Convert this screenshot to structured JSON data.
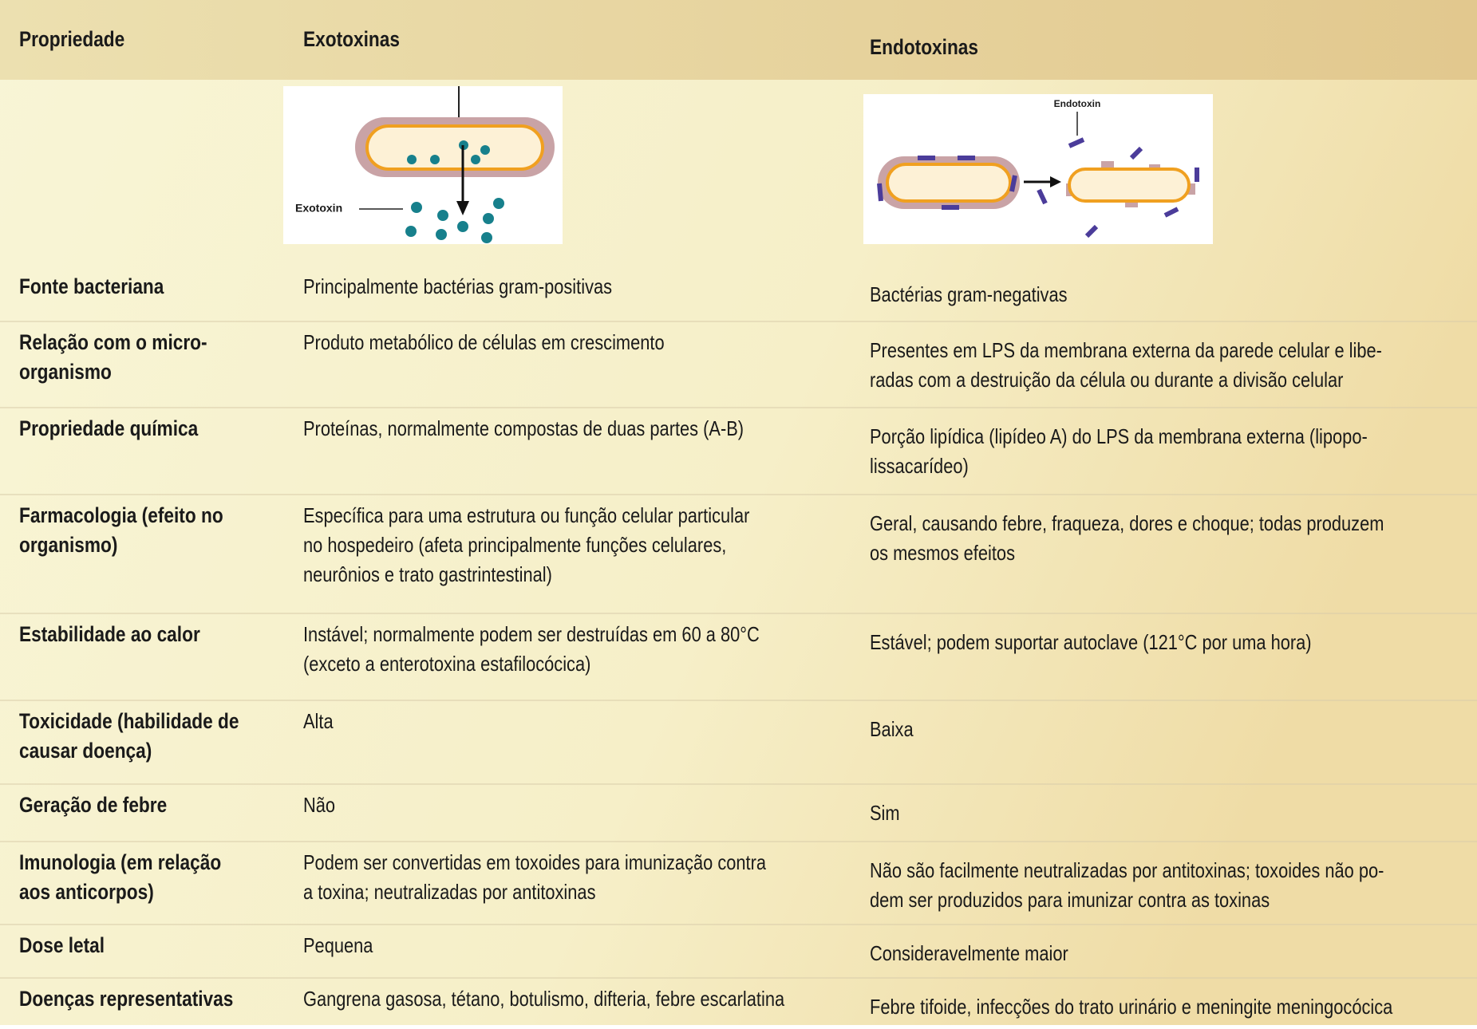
{
  "table": {
    "header": [
      "Propriedade",
      "Exotoxinas",
      "Endotoxinas"
    ],
    "figures": {
      "exotoxin_label": "Exotoxin",
      "endotoxin_label": "Endotoxin"
    },
    "rows": [
      [
        [
          "Fonte bacteriana"
        ],
        [
          "Principalmente bactérias gram-positivas"
        ],
        [
          "Bactérias gram-negativas"
        ]
      ],
      [
        [
          "Relação com o micro-",
          "organismo"
        ],
        [
          "Produto metabólico de células em crescimento"
        ],
        [
          "Presentes em LPS da membrana externa da parede celular e libe-",
          "radas com a destruição da célula ou durante a divisão celular"
        ]
      ],
      [
        [
          "Propriedade química"
        ],
        [
          "Proteínas, normalmente compostas de duas partes (A-B)"
        ],
        [
          "Porção lipídica (lipídeo A) do LPS da membrana externa (lipopo-",
          "lissacarídeo)"
        ]
      ],
      [
        [
          "Farmacologia (efeito no",
          "organismo)"
        ],
        [
          "Específica para uma estrutura ou função celular particular",
          "no hospedeiro (afeta principalmente funções celulares,",
          "neurônios e trato gastrintestinal)"
        ],
        [
          "Geral, causando febre, fraqueza, dores e choque; todas produzem",
          "os mesmos efeitos"
        ]
      ],
      [
        [
          "Estabilidade ao calor"
        ],
        [
          "Instável; normalmente podem ser destruídas em 60 a 80°C",
          "(exceto a enterotoxina estafilocócica)"
        ],
        [
          "Estável; podem suportar autoclave (121°C por uma hora)"
        ]
      ],
      [
        [
          "Toxicidade (habilidade de",
          "causar doença)"
        ],
        [
          "Alta"
        ],
        [
          "Baixa"
        ]
      ],
      [
        [
          "Geração de febre"
        ],
        [
          "Não"
        ],
        [
          "Sim"
        ]
      ],
      [
        [
          "Imunologia (em relação",
          "aos anticorpos)"
        ],
        [
          "Podem ser convertidas em toxoides para imunização contra",
          "a toxina; neutralizadas por antitoxinas"
        ],
        [
          "Não são facilmente neutralizadas por antitoxinas; toxoides não po-",
          "dem ser produzidos para imunizar contra as toxinas"
        ]
      ],
      [
        [
          "Dose letal"
        ],
        [
          "Pequena"
        ],
        [
          "Consideravelmente maior"
        ]
      ],
      [
        [
          "Doenças representativas"
        ],
        [
          "Gangrena gasosa, tétano, botulismo, difteria, febre escarlatina"
        ],
        [
          "Febre tifoide, infecções do trato urinário e meningite meningocócica"
        ]
      ]
    ]
  }
}
